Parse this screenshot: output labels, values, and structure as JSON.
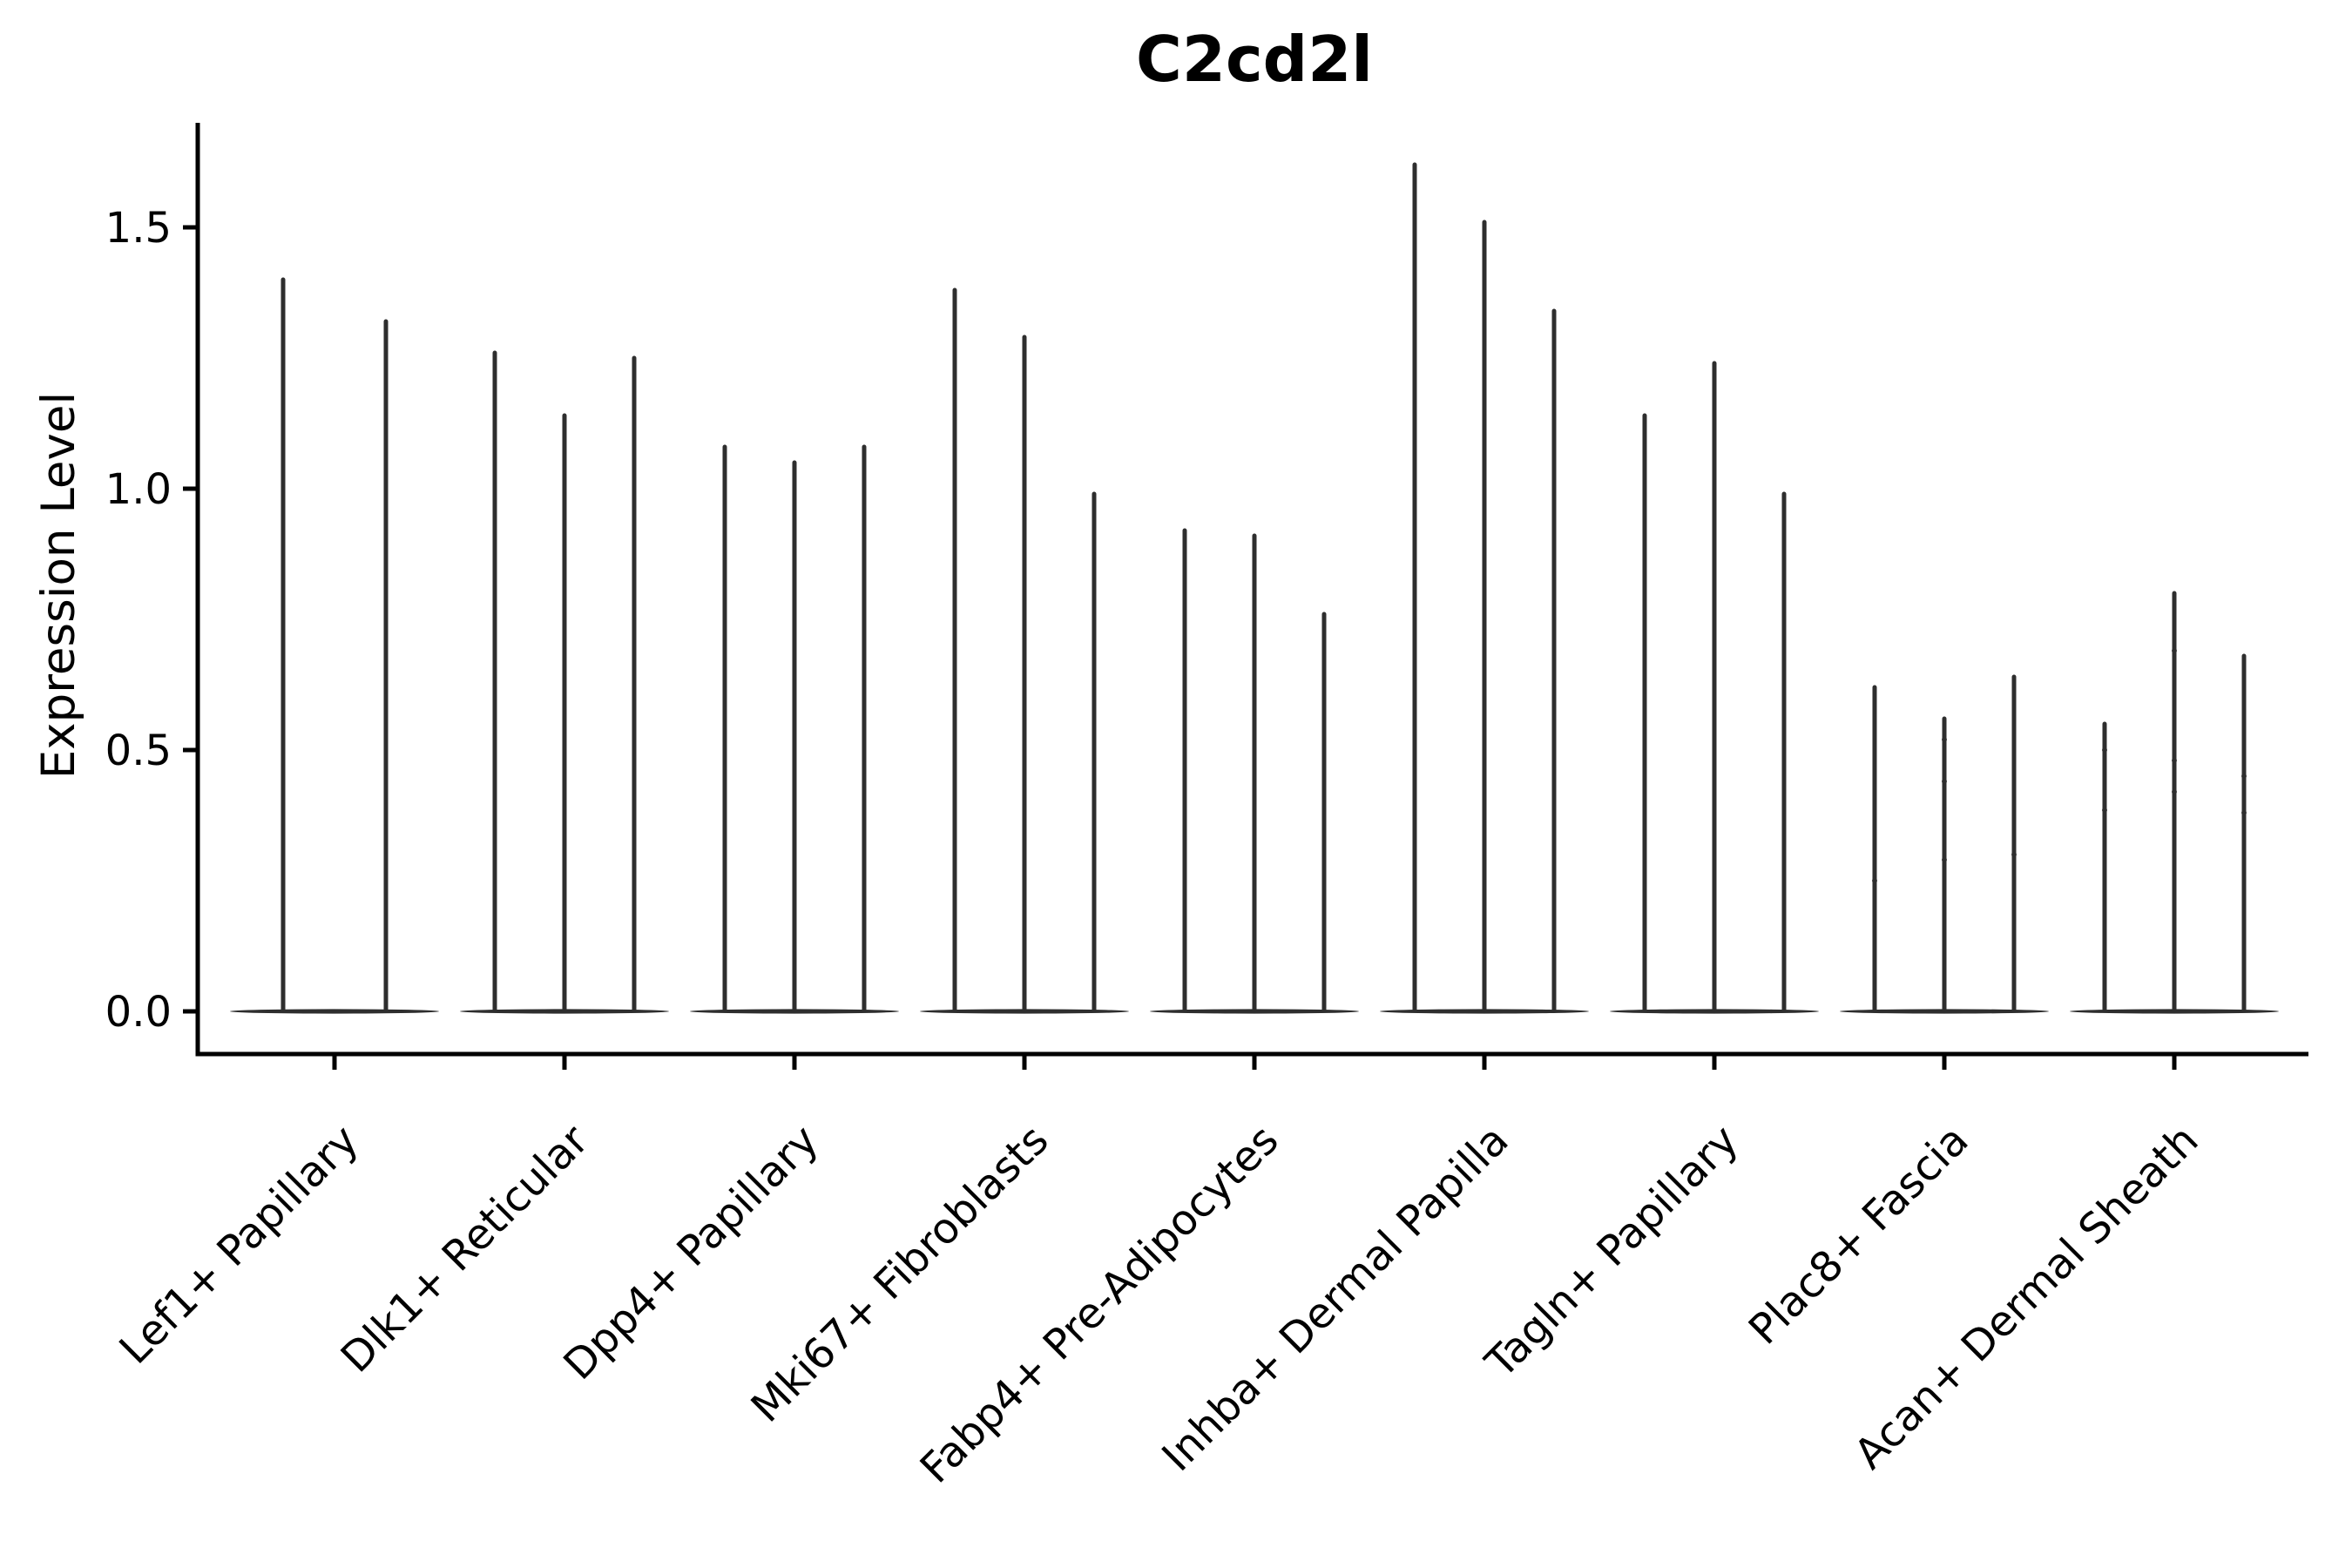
{
  "title": "C2cd2l",
  "y_axis": {
    "label": "Expression Level",
    "tick_labels": [
      "0.0",
      "0.5",
      "1.0",
      "1.5"
    ]
  },
  "chart_data": {
    "type": "violin",
    "title": "C2cd2l",
    "xlabel": "",
    "ylabel": "Expression Level",
    "yticks": [
      0.0,
      0.5,
      1.0,
      1.5
    ],
    "ylim": [
      -0.08,
      1.7
    ],
    "grid": false,
    "legend": "none",
    "style": "thin-spike violins (expression concentrated at 0 with sparse positive tails), flat basal lens at y=0 per group",
    "categories": [
      "Lef1+ Papillary",
      "Dlk1+ Reticular",
      "Dpp4+ Papillary",
      "Mki67+ Fibroblasts",
      "Fabp4+ Pre-Adipocytes",
      "Inhba+ Dermal Papilla",
      "Tagln+ Papillary",
      "Plac8+ Fascia",
      "Acan+ Dermal Sheath"
    ],
    "groups": [
      {
        "category": "Lef1+ Papillary",
        "violins": [
          {
            "max": 1.4,
            "dots": []
          },
          {
            "max": 1.32,
            "dots": []
          }
        ]
      },
      {
        "category": "Dlk1+ Reticular",
        "violins": [
          {
            "max": 1.26,
            "dots": []
          },
          {
            "max": 1.14,
            "dots": []
          },
          {
            "max": 1.25,
            "dots": []
          }
        ]
      },
      {
        "category": "Dpp4+ Papillary",
        "violins": [
          {
            "max": 1.08,
            "dots": []
          },
          {
            "max": 1.05,
            "dots": []
          },
          {
            "max": 1.08,
            "dots": []
          }
        ]
      },
      {
        "category": "Mki67+ Fibroblasts",
        "violins": [
          {
            "max": 1.38,
            "dots": []
          },
          {
            "max": 1.29,
            "dots": []
          },
          {
            "max": 0.99,
            "dots": []
          }
        ]
      },
      {
        "category": "Fabp4+ Pre-Adipocytes",
        "violins": [
          {
            "max": 0.92,
            "dots": []
          },
          {
            "max": 0.91,
            "dots": []
          },
          {
            "max": 0.76,
            "dots": []
          }
        ]
      },
      {
        "category": "Inhba+ Dermal Papilla",
        "violins": [
          {
            "max": 1.62,
            "dots": []
          },
          {
            "max": 1.51,
            "dots": []
          },
          {
            "max": 1.34,
            "dots": []
          }
        ]
      },
      {
        "category": "Tagln+ Papillary",
        "violins": [
          {
            "max": 1.14,
            "dots": []
          },
          {
            "max": 1.24,
            "dots": []
          },
          {
            "max": 0.99,
            "dots": []
          }
        ]
      },
      {
        "category": "Plac8+ Fascia",
        "violins": [
          {
            "max": 0.62,
            "dots": [
              0.25
            ]
          },
          {
            "max": 0.56,
            "dots": [
              0.52,
              0.44,
              0.29
            ]
          },
          {
            "max": 0.64,
            "dots": [
              0.3
            ]
          }
        ]
      },
      {
        "category": "Acan+ Dermal Sheath",
        "violins": [
          {
            "max": 0.55,
            "dots": [
              0.5,
              0.385
            ]
          },
          {
            "max": 0.8,
            "dots": [
              0.69,
              0.48,
              0.42
            ]
          },
          {
            "max": 0.68,
            "dots": [
              0.45,
              0.38
            ]
          }
        ]
      }
    ],
    "colors": {
      "violin": "#2e2e2e",
      "axis": "#000000",
      "text": "#000000",
      "background": "#ffffff"
    }
  }
}
